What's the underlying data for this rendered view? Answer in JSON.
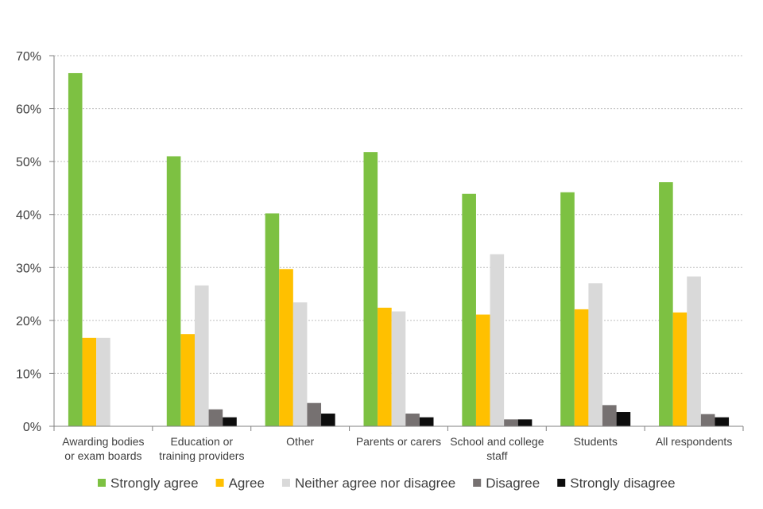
{
  "chart_data": {
    "type": "bar",
    "title": "",
    "xlabel": "",
    "ylabel": "",
    "ylim": [
      0,
      70
    ],
    "yticks": [
      0,
      10,
      20,
      30,
      40,
      50,
      60,
      70
    ],
    "ytick_labels": [
      "0%",
      "10%",
      "20%",
      "30%",
      "40%",
      "50%",
      "60%",
      "70%"
    ],
    "grid": true,
    "legend_position": "bottom",
    "categories": [
      [
        "Awarding bodies",
        "or exam boards"
      ],
      [
        "Education or",
        "training providers"
      ],
      [
        "Other"
      ],
      [
        "Parents or carers"
      ],
      [
        "School and college",
        "staff"
      ],
      [
        "Students"
      ],
      [
        "All respondents"
      ]
    ],
    "series": [
      {
        "name": "Strongly agree",
        "color": "#7dc142",
        "values": [
          66.7,
          51.0,
          40.2,
          51.8,
          43.9,
          44.2,
          46.1
        ]
      },
      {
        "name": "Agree",
        "color": "#ffc000",
        "values": [
          16.7,
          17.4,
          29.7,
          22.4,
          21.1,
          22.1,
          21.5
        ]
      },
      {
        "name": "Neither agree nor disagree",
        "color": "#d9d9d9",
        "values": [
          16.7,
          26.6,
          23.4,
          21.7,
          32.5,
          27.0,
          28.3
        ]
      },
      {
        "name": "Disagree",
        "color": "#767171",
        "values": [
          0,
          3.2,
          4.4,
          2.4,
          1.3,
          4.0,
          2.3
        ]
      },
      {
        "name": "Strongly disagree",
        "color": "#0d0d0d",
        "values": [
          0,
          1.7,
          2.4,
          1.7,
          1.3,
          2.7,
          1.7
        ]
      }
    ]
  }
}
